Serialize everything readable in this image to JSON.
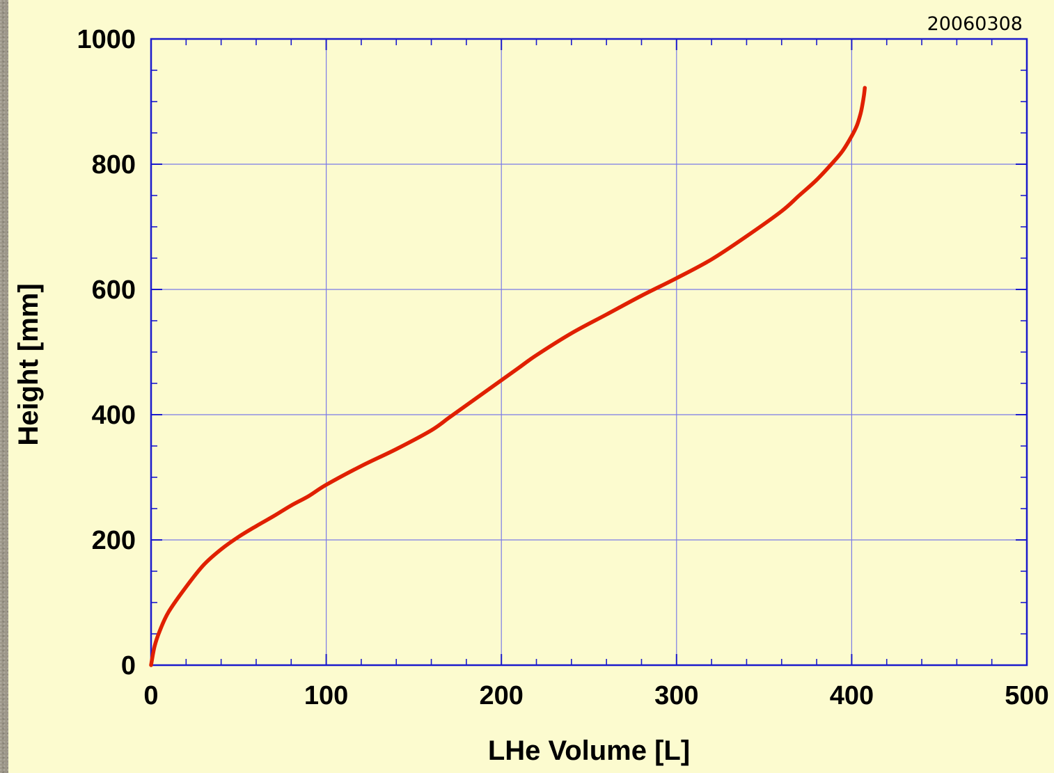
{
  "chart_data": {
    "type": "line",
    "title": "",
    "stamp": "20060308",
    "xlabel": "LHe Volume [L]",
    "ylabel": "Height [mm]",
    "xlim": [
      0,
      500
    ],
    "ylim": [
      0,
      1000
    ],
    "xticks": [
      "0",
      "100",
      "200",
      "300",
      "400",
      "500"
    ],
    "yticks": [
      "0",
      "200",
      "400",
      "600",
      "800",
      "1000"
    ],
    "grid": true,
    "series": [
      {
        "color": "#e02000",
        "x": [
          0,
          2,
          5,
          10,
          20,
          30,
          40,
          50,
          60,
          70,
          80,
          90,
          100,
          120,
          140,
          160,
          170,
          180,
          190,
          200,
          210,
          220,
          240,
          260,
          280,
          300,
          320,
          340,
          360,
          370,
          380,
          390,
          395,
          400,
          403,
          405,
          406,
          407,
          407.5
        ],
        "y": [
          0,
          30,
          55,
          85,
          125,
          160,
          185,
          205,
          222,
          238,
          255,
          270,
          288,
          318,
          345,
          375,
          395,
          415,
          435,
          455,
          475,
          495,
          530,
          560,
          590,
          618,
          648,
          685,
          725,
          750,
          775,
          805,
          822,
          845,
          862,
          880,
          893,
          910,
          922
        ]
      }
    ]
  }
}
